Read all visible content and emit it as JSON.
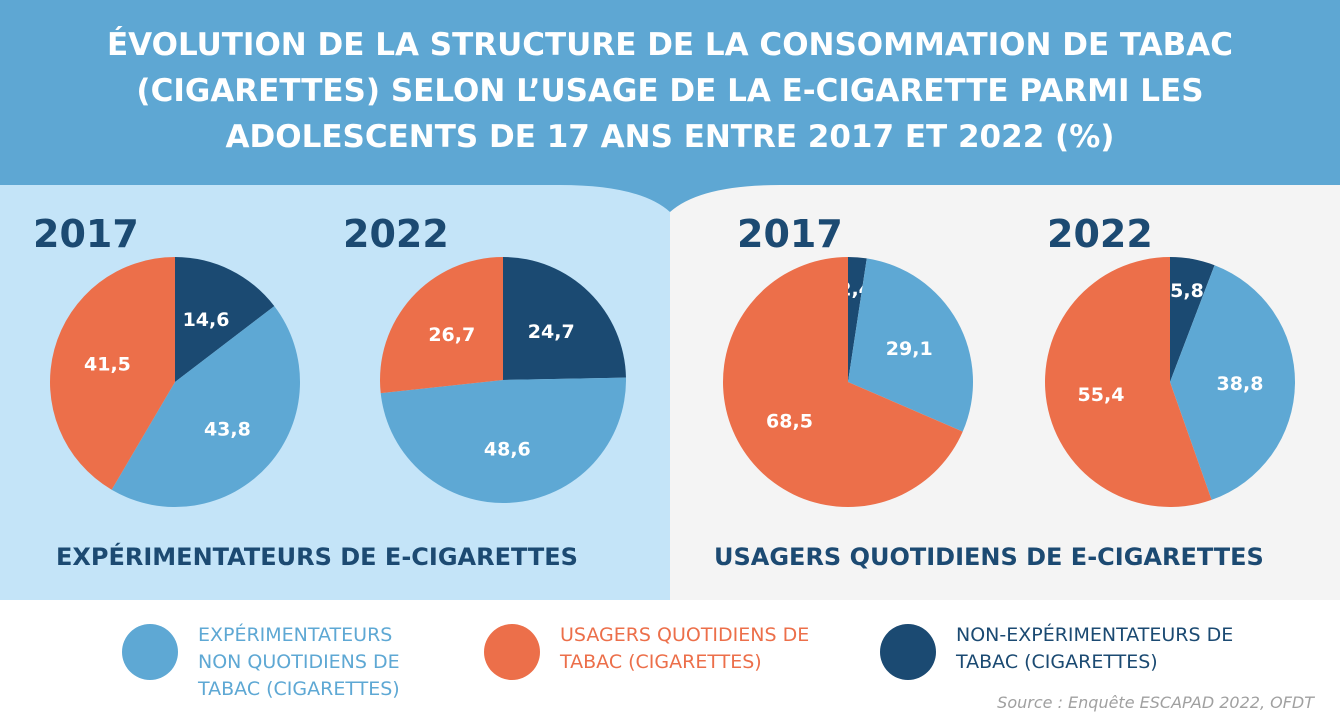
{
  "title": "ÉVOLUTION DE LA STRUCTURE DE LA CONSOMMATION DE TABAC (CIGARETTES) SELON L’USAGE DE LA E-CIGARETTE PARMI LES ADOLESCENTS DE 17 ANS ENTRE 2017 ET 2022 (%)",
  "colors": {
    "light_blue": "#5ea8d4",
    "orange": "#ec6f4a",
    "dark_blue": "#1b4a72"
  },
  "groups": [
    {
      "label": "EXPÉRIMENTATEURS DE E-CIGARETTES"
    },
    {
      "label": "USAGERS QUOTIDIENS DE E-CIGARETTES"
    }
  ],
  "legend": [
    {
      "label": "EXPÉRIMENTATEURS NON QUOTIDIENS DE TABAC (CIGARETTES)",
      "color": "#5ea8d4"
    },
    {
      "label": "USAGERS QUOTIDIENS DE TABAC (CIGARETTES)",
      "color": "#ec6f4a"
    },
    {
      "label": "NON-EXPÉRIMENTATEURS DE TABAC (CIGARETTES)",
      "color": "#1b4a72"
    }
  ],
  "source": "Source : Enquête ESCAPAD 2022, OFDT",
  "chart_data": [
    {
      "type": "pie",
      "group": "EXPÉRIMENTATEURS DE E-CIGARETTES",
      "title": "2017",
      "slices": [
        {
          "series": "NON-EXPÉRIMENTATEURS DE TABAC (CIGARETTES)",
          "value": 14.6,
          "label": "14,6",
          "color": "#1b4a72"
        },
        {
          "series": "EXPÉRIMENTATEURS NON QUOTIDIENS DE TABAC (CIGARETTES)",
          "value": 43.8,
          "label": "43,8",
          "color": "#5ea8d4"
        },
        {
          "series": "USAGERS QUOTIDIENS DE TABAC (CIGARETTES)",
          "value": 41.5,
          "label": "41,5",
          "color": "#ec6f4a"
        }
      ]
    },
    {
      "type": "pie",
      "group": "EXPÉRIMENTATEURS DE E-CIGARETTES",
      "title": "2022",
      "slices": [
        {
          "series": "NON-EXPÉRIMENTATEURS DE TABAC (CIGARETTES)",
          "value": 24.7,
          "label": "24,7",
          "color": "#1b4a72"
        },
        {
          "series": "EXPÉRIMENTATEURS NON QUOTIDIENS DE TABAC (CIGARETTES)",
          "value": 48.6,
          "label": "48,6",
          "color": "#5ea8d4"
        },
        {
          "series": "USAGERS QUOTIDIENS DE TABAC (CIGARETTES)",
          "value": 26.7,
          "label": "26,7",
          "color": "#ec6f4a"
        }
      ]
    },
    {
      "type": "pie",
      "group": "USAGERS QUOTIDIENS DE E-CIGARETTES",
      "title": "2017",
      "slices": [
        {
          "series": "NON-EXPÉRIMENTATEURS DE TABAC (CIGARETTES)",
          "value": 2.4,
          "label": "2,4",
          "color": "#1b4a72"
        },
        {
          "series": "EXPÉRIMENTATEURS NON QUOTIDIENS DE TABAC (CIGARETTES)",
          "value": 29.1,
          "label": "29,1",
          "color": "#5ea8d4"
        },
        {
          "series": "USAGERS QUOTIDIENS DE TABAC (CIGARETTES)",
          "value": 68.5,
          "label": "68,5",
          "color": "#ec6f4a"
        }
      ]
    },
    {
      "type": "pie",
      "group": "USAGERS QUOTIDIENS DE E-CIGARETTES",
      "title": "2022",
      "slices": [
        {
          "series": "NON-EXPÉRIMENTATEURS DE TABAC (CIGARETTES)",
          "value": 5.8,
          "label": "5,8",
          "color": "#1b4a72"
        },
        {
          "series": "EXPÉRIMENTATEURS NON QUOTIDIENS DE TABAC (CIGARETTES)",
          "value": 38.8,
          "label": "38,8",
          "color": "#5ea8d4"
        },
        {
          "series": "USAGERS QUOTIDIENS DE TABAC (CIGARETTES)",
          "value": 55.4,
          "label": "55,4",
          "color": "#ec6f4a"
        }
      ]
    }
  ]
}
